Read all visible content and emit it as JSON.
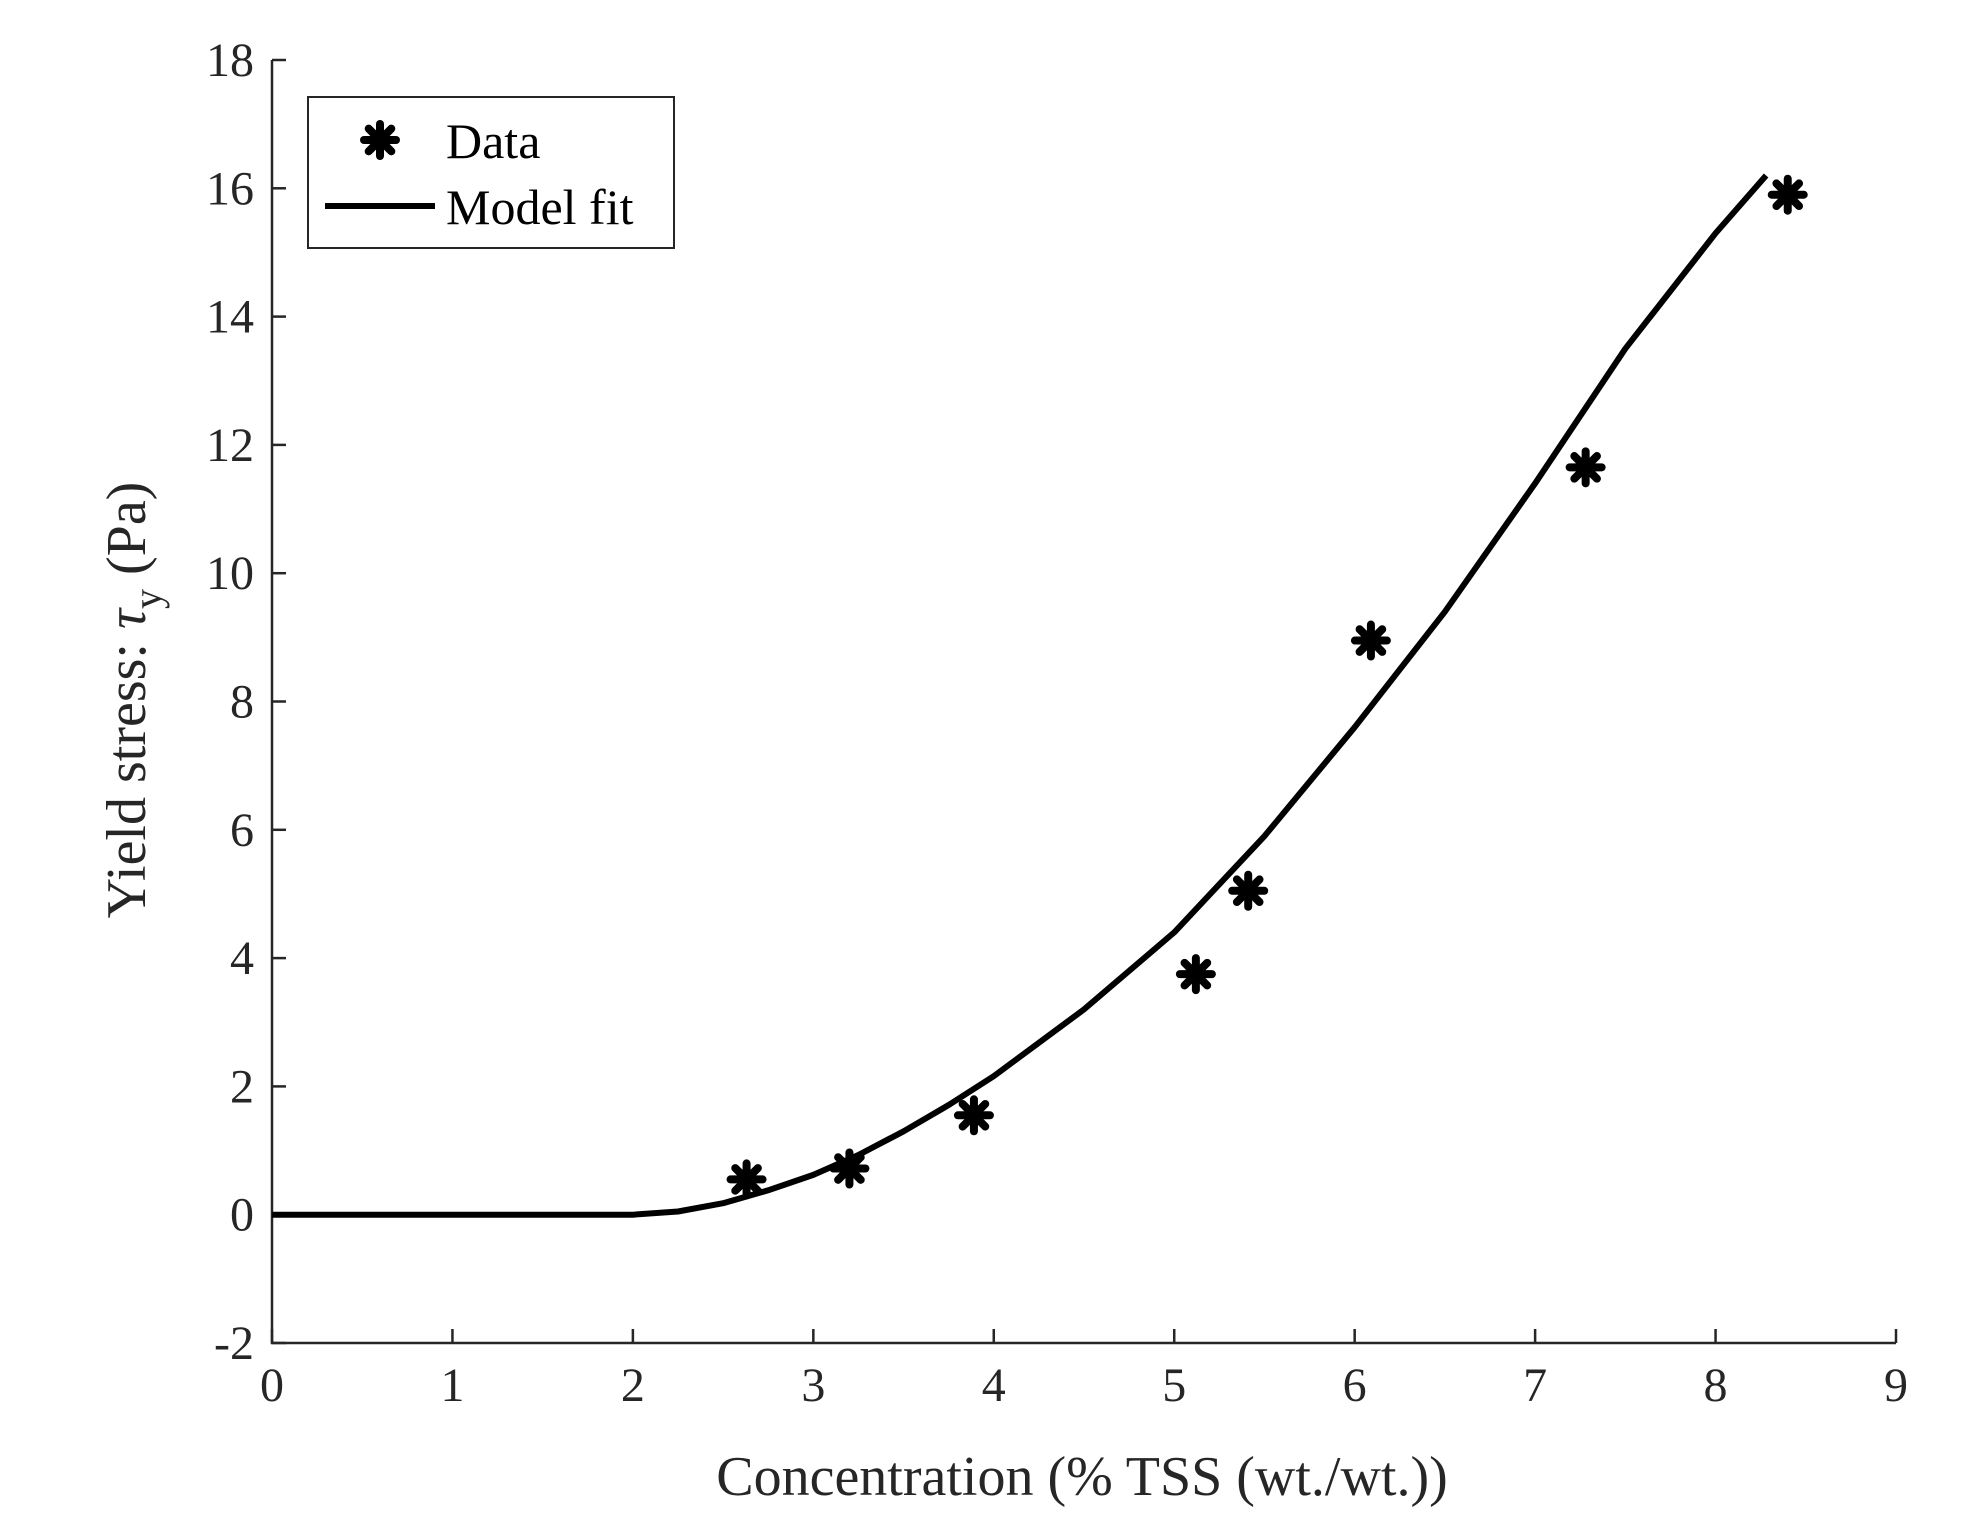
{
  "chart_data": {
    "type": "scatter",
    "title": "",
    "xlabel": "Concentration (% TSS (wt./wt.))",
    "ylabel": {
      "prefix": "Yield stress: ",
      "symbol": "τ",
      "subscript": "y",
      "unit": " (Pa)"
    },
    "xlim": [
      0,
      9
    ],
    "ylim": [
      -2,
      18
    ],
    "xticks": [
      0,
      1,
      2,
      3,
      4,
      5,
      6,
      7,
      8,
      9
    ],
    "xtick_labels": [
      "0",
      "1",
      "2",
      "3",
      "4",
      "5",
      "6",
      "7",
      "8",
      "9"
    ],
    "yticks": [
      -2,
      0,
      2,
      4,
      6,
      8,
      10,
      12,
      14,
      16,
      18
    ],
    "ytick_labels": [
      "-2",
      "0",
      "2",
      "4",
      "6",
      "8",
      "10",
      "12",
      "14",
      "16",
      "18"
    ],
    "grid": false,
    "legend_position": "top-left",
    "series": [
      {
        "name": "Data",
        "kind": "markers",
        "marker": "asterisk",
        "color": "#000000",
        "x": [
          2.63,
          3.2,
          3.89,
          5.12,
          5.41,
          6.09,
          7.28,
          8.4
        ],
        "y": [
          0.55,
          0.72,
          1.55,
          3.75,
          5.05,
          8.95,
          11.65,
          15.9
        ]
      },
      {
        "name": "Model fit",
        "kind": "line",
        "color": "#000000",
        "x": [
          0,
          2.0,
          2.25,
          2.5,
          2.75,
          3.0,
          3.25,
          3.5,
          3.75,
          4.0,
          4.5,
          5.0,
          5.5,
          6.0,
          6.5,
          7.0,
          7.5,
          8.0,
          8.28
        ],
        "y": [
          0,
          0,
          0.05,
          0.18,
          0.38,
          0.62,
          0.93,
          1.3,
          1.71,
          2.16,
          3.2,
          4.4,
          5.9,
          7.6,
          9.4,
          11.4,
          13.5,
          15.3,
          16.2
        ]
      }
    ]
  }
}
